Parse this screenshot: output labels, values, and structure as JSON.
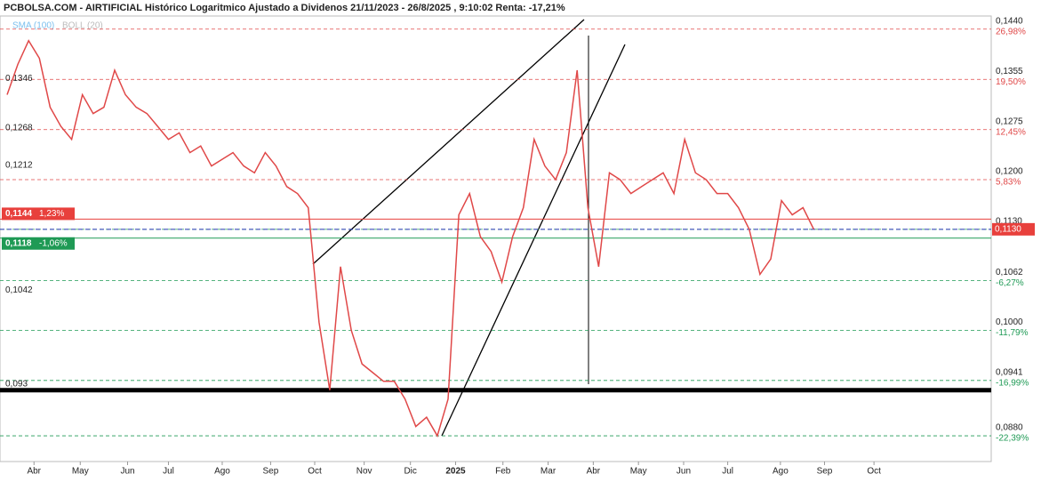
{
  "chart_data": {
    "type": "line",
    "title": "PCBOLSA.COM - AIRTIFICIAL Histórico Logaritmico Ajustado a Dividenos 21/11/2023 - 26/8/2025 , 9:10:02 Renta: -17,21%",
    "indicators": [
      "SMA (100)",
      "BOLL (20)"
    ],
    "log_scale": true,
    "x": [
      0,
      1,
      2,
      3,
      4,
      5,
      6,
      7,
      8,
      9,
      10,
      11,
      12,
      13,
      14,
      15,
      16,
      17,
      18,
      19,
      20,
      21,
      22,
      23,
      24,
      25,
      26,
      27,
      28,
      29,
      30,
      31,
      32,
      33,
      34,
      35,
      36,
      37,
      38,
      39,
      40,
      41,
      42,
      43,
      44,
      45,
      46,
      47,
      48,
      49,
      50,
      51,
      52,
      53,
      54,
      55,
      56,
      57,
      58,
      59,
      60,
      61,
      62,
      63,
      64,
      65,
      66,
      67,
      68,
      69,
      70,
      71,
      72,
      73,
      74,
      75
    ],
    "series": [
      {
        "color": "#e04848",
        "values": [
          0.133,
          0.138,
          0.142,
          0.139,
          0.131,
          0.128,
          0.126,
          0.133,
          0.13,
          0.131,
          0.137,
          0.133,
          0.131,
          0.13,
          0.128,
          0.126,
          0.127,
          0.124,
          0.125,
          0.122,
          0.123,
          0.124,
          0.122,
          0.121,
          0.124,
          0.122,
          0.119,
          0.118,
          0.116,
          0.101,
          0.093,
          0.108,
          0.1,
          0.096,
          0.095,
          0.094,
          0.094,
          0.092,
          0.089,
          0.09,
          0.088,
          0.092,
          0.115,
          0.118,
          0.112,
          0.11,
          0.106,
          0.112,
          0.116,
          0.126,
          0.122,
          0.12,
          0.124,
          0.137,
          0.116,
          0.108,
          0.121,
          0.12,
          0.118,
          0.119,
          0.12,
          0.121,
          0.118,
          0.126,
          0.121,
          0.12,
          0.118,
          0.118,
          0.116,
          0.113,
          0.107,
          0.109,
          0.117,
          0.115,
          0.116,
          0.113
        ]
      }
    ],
    "xlim": [
      0,
      91.5
    ],
    "xticks": [
      {
        "value": 2.5,
        "label": "Abr"
      },
      {
        "value": 6.8,
        "label": "May"
      },
      {
        "value": 11.2,
        "label": "Jun"
      },
      {
        "value": 15,
        "label": "Jul"
      },
      {
        "value": 20,
        "label": "Ago"
      },
      {
        "value": 24.5,
        "label": "Sep"
      },
      {
        "value": 28.6,
        "label": "Oct"
      },
      {
        "value": 33.2,
        "label": "Nov"
      },
      {
        "value": 37.5,
        "label": "Dic"
      },
      {
        "value": 41.7,
        "label": "2025"
      },
      {
        "value": 46.1,
        "label": "Feb"
      },
      {
        "value": 50.3,
        "label": "Mar"
      },
      {
        "value": 54.5,
        "label": "Abr"
      },
      {
        "value": 58.7,
        "label": "May"
      },
      {
        "value": 62.9,
        "label": "Jun"
      },
      {
        "value": 67,
        "label": "Jul"
      },
      {
        "value": 71.9,
        "label": "Ago"
      },
      {
        "value": 76,
        "label": "Sep"
      },
      {
        "value": 80.6,
        "label": "Oct"
      }
    ],
    "ylim": [
      0.0853,
      0.1463
    ],
    "yticks": [
      {
        "value": 0.144,
        "label": "0,1440"
      },
      {
        "value": 0.1355,
        "label": "0,1355"
      },
      {
        "value": 0.1275,
        "label": "0,1275"
      },
      {
        "value": 0.12,
        "label": "0,1200"
      },
      {
        "value": 0.113,
        "label": "0,1130"
      },
      {
        "value": 0.1062,
        "label": "0,1062"
      },
      {
        "value": 0.1,
        "label": "0,1000"
      },
      {
        "value": 0.0941,
        "label": "0,0941"
      },
      {
        "value": 0.088,
        "label": "0,0880"
      }
    ],
    "ytick_percent_labels": [
      "26,98%",
      "19,50%",
      "12,45%",
      "5,83%",
      null,
      "-6,27%",
      "-11,79%",
      "-16,99%",
      "-22,39%"
    ],
    "left_levels": [
      {
        "value": 0.1346,
        "label": "0,1346"
      },
      {
        "value": 0.1268,
        "label": "0,1268"
      },
      {
        "value": 0.1212,
        "label": "0,1212"
      },
      {
        "value": 0.1042,
        "label": "0,1042"
      },
      {
        "value": 0.093,
        "label": "0,093"
      }
    ],
    "upper_level": {
      "value": 0.1144,
      "label": "0,1144",
      "change": "1,23%",
      "color": "#e8403c"
    },
    "lower_level": {
      "value": 0.1118,
      "label": "0,1118",
      "change": "-1,06%",
      "color": "#1f9a55"
    },
    "last_price": {
      "value": 0.113,
      "label": "0,1130",
      "color": "#e8403c"
    }
  }
}
